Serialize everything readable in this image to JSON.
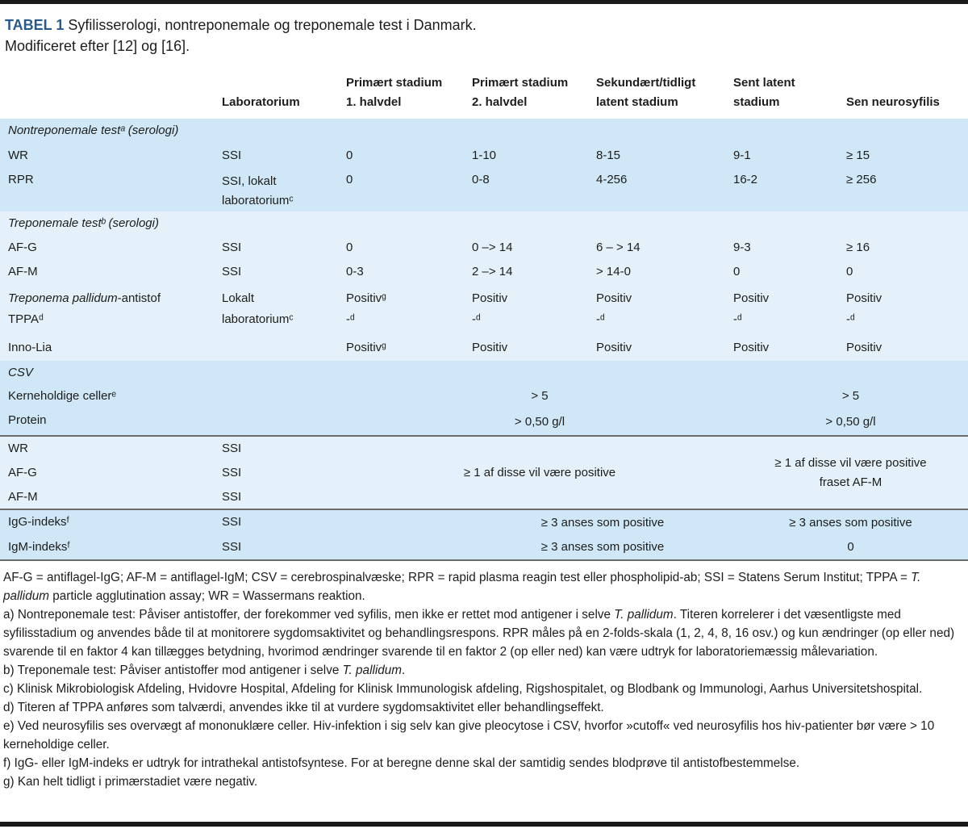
{
  "title": {
    "tag": "TABEL 1",
    "line1_rest": " Syfilisserologi, nontreponemale og treponemale test i Danmark.",
    "line2": "Modificeret efter [12] og [16]."
  },
  "colors": {
    "band_dark": "#cfe7f6",
    "band_light": "#e4f1fa",
    "title_blue": "#2a5a88",
    "rule_black": "#1a1a1a",
    "divider_gray": "#6b6b6b"
  },
  "header": {
    "laboratorium": "Laboratorium",
    "c3": [
      "Primært stadium",
      "1. halvdel"
    ],
    "c4": [
      "Primært stadium",
      "2. halvdel"
    ],
    "c5": [
      "Sekundært/tidligt",
      "latent stadium"
    ],
    "c6": [
      "Sent latent",
      "stadium"
    ],
    "c7": "Sen neurosyfilis"
  },
  "rows": {
    "section_nontreponemale": "Nontreponemale testᵃ (serologi)",
    "wr": [
      "WR",
      "SSI",
      "0",
      "1-10",
      "8-15",
      "9-1",
      "≥ 15"
    ],
    "rpr": {
      "name": "RPR",
      "lab": [
        "SSI, lokalt",
        "laboratoriumᶜ"
      ],
      "v": [
        "0",
        "0-8",
        "4-256",
        "16-2",
        "≥ 256"
      ]
    },
    "section_treponemale": "Treponemale testᵇ (serologi)",
    "afg": [
      "AF-G",
      "SSI",
      "0",
      "0 –> 14",
      "6 – > 14",
      "9-3",
      "≥ 16"
    ],
    "afm": [
      "AF-M",
      "SSI",
      "0-3",
      "2 –> 14",
      "> 14-0",
      "0",
      "0"
    ],
    "tppa": {
      "name_segments": [
        {
          "t": "Treponema pallidum",
          "i": true
        },
        {
          "t": "-antistof"
        }
      ],
      "name2": "TPPAᵈ",
      "lab": [
        "Lokalt",
        "laboratoriumᶜ"
      ],
      "v1": [
        "Positivᵍ",
        "Positiv",
        "Positiv",
        "Positiv",
        "Positiv"
      ],
      "v2": [
        "-ᵈ",
        "-ᵈ",
        "-ᵈ",
        "-ᵈ",
        "-ᵈ"
      ]
    },
    "innolia": {
      "name": "Inno-Lia",
      "v": [
        "Positivᵍ",
        "Positiv",
        "Positiv",
        "Positiv",
        "Positiv"
      ]
    },
    "section_csv": "CSV",
    "kerneholdige": {
      "name": "Kerneholdige cellerᵉ",
      "mid": "> 5",
      "right": "> 5"
    },
    "protein": {
      "name": "Protein",
      "mid": "> 0,50 g/l",
      "right": "> 0,50 g/l"
    },
    "group_positive": {
      "tests": [
        [
          "WR",
          "SSI"
        ],
        [
          "AF-G",
          "SSI"
        ],
        [
          "AF-M",
          "SSI"
        ]
      ],
      "mid": "≥ 1 af disse vil være positive",
      "right": [
        "≥ 1 af disse vil være positive",
        "fraset AF-M"
      ]
    },
    "igg": {
      "name": "IgG-indeksᶠ",
      "lab": "SSI",
      "mid": "≥ 3 anses som positive",
      "right": "≥ 3 anses som positive"
    },
    "igm": {
      "name": "IgM-indeksᶠ",
      "lab": "SSI",
      "mid": "≥ 3 anses som positive",
      "right": "0"
    }
  },
  "footnotes": [
    {
      "segments": [
        {
          "t": "AF-G = antiflagel-IgG; AF-M = antiflagel-IgM; CSV = cerebrospinalvæske; RPR = rapid plasma reagin test eller phospholipid-ab; SSI = Statens Serum Institut; TPPA = "
        },
        {
          "t": "T. pallidum",
          "i": true
        },
        {
          "t": " particle agglutination assay; WR = Wassermans reaktion."
        }
      ]
    },
    {
      "segments": [
        {
          "t": "a) Nontreponemale test: Påviser antistoffer, der forekommer ved syfilis, men ikke er rettet mod antigener i selve "
        },
        {
          "t": "T. pallidum",
          "i": true
        },
        {
          "t": ". Titeren korrelerer i det væsentligste med syfilisstadium og anvendes både til at monitorere sygdomsaktivitet og behandlingsrespons. RPR måles på en 2-folds-skala (1, 2, 4, 8, 16 osv.) og kun ændringer (op eller ned) svarende til en faktor 4 kan tillægges betydning, hvorimod ændringer svarende til en faktor 2 (op eller ned) kan være udtryk for laboratoriemæssig målevariation."
        }
      ]
    },
    {
      "segments": [
        {
          "t": "b) Treponemale test: Påviser antistoffer mod antigener i selve "
        },
        {
          "t": "T. pallidum",
          "i": true
        },
        {
          "t": "."
        }
      ]
    },
    {
      "segments": [
        {
          "t": "c) Klinisk Mikrobiologisk Afdeling, Hvidovre Hospital, Afdeling for Klinisk Immunologisk afdeling, Rigshospitalet, og Blodbank og Immunologi, Aarhus Universitetshospital."
        }
      ]
    },
    {
      "segments": [
        {
          "t": "d) Titeren af TPPA anføres som talværdi, anvendes ikke til at vurdere sygdomsaktivitet eller behandlingseffekt."
        }
      ]
    },
    {
      "segments": [
        {
          "t": "e) Ved neurosyfilis ses overvægt af mononuklære celler. Hiv-infektion i sig selv kan give pleocytose i CSV, hvorfor »cutoff« ved neurosyfilis hos hiv-patienter bør være > 10 kerneholdige celler."
        }
      ]
    },
    {
      "segments": [
        {
          "t": "f) IgG- eller IgM-indeks er udtryk for intrathekal antistofsyntese. For at beregne denne skal der samtidig sendes blodprøve til antistofbestemmelse."
        }
      ]
    },
    {
      "segments": [
        {
          "t": "g) Kan helt tidligt i primærstadiet være negativ."
        }
      ]
    }
  ]
}
